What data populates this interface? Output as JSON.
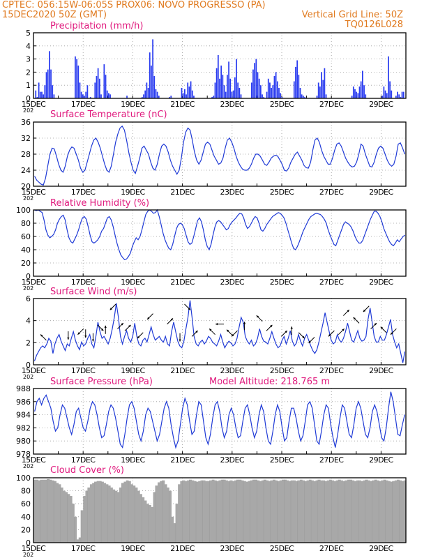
{
  "header": {
    "left_line1": "CPTEC:   056:15W-06:05S   PROX06: NOVO PROGRESSO (PA)",
    "left_line2": "15DEC2020 50Z (GMT)",
    "right_line2": "Vertical Grid Line: 50Z",
    "right_line3": "TQ0126L028"
  },
  "colors": {
    "header": "#e07a1f",
    "title": "#e0197d",
    "line": "#1f3ad6",
    "bar": "#2a3cf0",
    "cloud": "#a8a8a8",
    "grid": "#9a9a9a"
  },
  "x_axis": {
    "labels": [
      "15DEC",
      "17DEC",
      "19DEC",
      "21DEC",
      "23DEC",
      "25DEC",
      "27DEC",
      "29DEC"
    ],
    "year_fragment": "202"
  },
  "chart_data": [
    {
      "id": "precip",
      "type": "bar",
      "title": "Precipitation (mm/h)",
      "ylim": [
        0,
        5
      ],
      "yticks": [
        "0",
        "1",
        "2",
        "3",
        "4",
        "5"
      ],
      "x_range_days": [
        15,
        30
      ],
      "values": [
        0,
        0.6,
        0.1,
        1.2,
        0.5,
        0.5,
        0.3,
        1.0,
        2.0,
        2.2,
        3.6,
        2.2,
        1.0,
        0.3,
        0,
        0,
        0,
        0,
        0,
        0,
        0,
        0,
        0,
        0,
        0,
        0,
        0,
        3.2,
        3.0,
        2.5,
        1.2,
        0.5,
        0.3,
        0.2,
        0.5,
        1.0,
        0,
        0.1,
        0,
        0,
        1.2,
        1.7,
        2.3,
        1.5,
        0.3,
        0,
        2.6,
        1.8,
        0.6,
        0.4,
        0.3,
        0,
        0,
        0,
        0,
        0,
        0,
        0,
        0,
        0,
        0,
        0.2,
        0,
        0,
        0,
        0,
        0,
        0,
        0,
        0,
        0,
        0.1,
        0.3,
        0.6,
        1.2,
        0.8,
        3.5,
        2.5,
        4.5,
        1.7,
        0.7,
        0.5,
        0.2,
        0,
        0,
        0,
        0,
        0,
        0,
        0.1,
        0.2,
        0,
        0,
        0,
        0,
        0,
        0,
        0.8,
        0.4,
        0.7,
        0.3,
        1.2,
        0.9,
        1.3,
        0.6,
        0.2,
        0,
        0,
        0,
        0,
        0,
        0,
        0,
        0,
        0,
        0,
        0,
        0.1,
        0.2,
        1.2,
        2.3,
        3.3,
        1.5,
        2.5,
        1.8,
        1.0,
        0.5,
        1.8,
        2.8,
        1.5,
        0.5,
        0.6,
        1.6,
        3.0,
        1.2,
        0.8,
        0.3,
        0,
        0,
        0,
        0,
        0,
        0,
        1.2,
        2.2,
        2.7,
        3.0,
        2.0,
        1.5,
        1.0,
        0.3,
        0.1,
        0,
        0.5,
        1.5,
        1.2,
        0.8,
        1.0,
        1.7,
        2.0,
        1.3,
        0.8,
        0.4,
        0.1,
        0,
        0,
        0,
        0,
        0,
        0,
        0,
        1.3,
        2.4,
        2.9,
        1.8,
        0.8,
        0.3,
        0.2,
        0.1,
        0,
        0,
        0,
        0,
        0,
        0,
        0,
        0.2,
        1.2,
        0.9,
        2.0,
        1.4,
        2.3,
        0.3,
        0,
        0,
        0,
        0,
        0,
        0,
        0,
        0,
        0,
        0,
        0,
        0,
        0,
        0,
        0,
        0,
        0.2,
        0.9,
        0.7,
        0.5,
        0.4,
        0.9,
        1.3,
        2.1,
        1.0,
        0.3,
        0,
        0,
        0,
        0,
        0,
        0,
        0,
        0,
        0,
        0,
        0.2,
        0.9,
        0.6,
        0.4,
        3.2,
        1.3,
        0.6,
        0,
        0,
        0.2,
        0.5,
        0.3,
        0.1,
        0.5,
        0.5,
        0
      ]
    },
    {
      "id": "temp",
      "type": "line",
      "title": "Surface Temperature (nC)",
      "ylim": [
        20,
        36
      ],
      "yticks": [
        "20",
        "24",
        "28",
        "32",
        "36"
      ],
      "x_range_days": [
        15,
        30
      ],
      "values": [
        22.5,
        21.5,
        21.0,
        20.5,
        20.3,
        22,
        25,
        28,
        29.5,
        29.3,
        27.5,
        25.5,
        24,
        23.5,
        25,
        27.5,
        29,
        29.8,
        29.5,
        28,
        26.5,
        24.5,
        23.5,
        24,
        26,
        28,
        30,
        31.5,
        32,
        31,
        29.5,
        27.5,
        25.5,
        24,
        23.5,
        25,
        28,
        31,
        33,
        34.5,
        35,
        34,
        31.5,
        28.5,
        26,
        24,
        23.2,
        25,
        27,
        29.5,
        30,
        29,
        28,
        26,
        24.5,
        24,
        25.5,
        28,
        30,
        30.5,
        30,
        28.5,
        26.5,
        25,
        24,
        23,
        24,
        27,
        31,
        33.5,
        34.5,
        34,
        31.5,
        28.5,
        26.5,
        25.5,
        26.5,
        28.5,
        30.5,
        31,
        30.5,
        29,
        27.5,
        26.5,
        25.5,
        25.8,
        27,
        29.5,
        31.5,
        32,
        31,
        29.5,
        27.5,
        26,
        25,
        24.2,
        24,
        24,
        24.5,
        25.5,
        27,
        28,
        28,
        27.5,
        26.5,
        25.5,
        25.2,
        26,
        27,
        27.5,
        27.7,
        27.5,
        26.5,
        25.5,
        24,
        23.8,
        24.5,
        26,
        27,
        28,
        28.5,
        27.5,
        26.5,
        25.2,
        24.6,
        24.5,
        26,
        29,
        31.5,
        32,
        31,
        29,
        27.5,
        26.5,
        25.5,
        25.5,
        27,
        29,
        30.5,
        30.8,
        30,
        28.5,
        27,
        26,
        25.2,
        24.8,
        25,
        26,
        28,
        30.5,
        30,
        28,
        26.5,
        25,
        24.8,
        26,
        28,
        29.5,
        30,
        29.5,
        28,
        26.5,
        25.5,
        25,
        25.5,
        27.5,
        30.5,
        30.8,
        29.5,
        28
      ]
    },
    {
      "id": "rh",
      "type": "line",
      "title": "Relative Humidity (%)",
      "ylim": [
        0,
        100
      ],
      "yticks": [
        "0",
        "20",
        "40",
        "60",
        "80",
        "100"
      ],
      "x_range_days": [
        15,
        30
      ],
      "values": [
        100,
        99,
        100,
        98,
        96,
        85,
        70,
        62,
        58,
        60,
        63,
        70,
        80,
        86,
        90,
        92,
        85,
        70,
        58,
        52,
        50,
        56,
        62,
        70,
        80,
        88,
        90,
        86,
        75,
        62,
        52,
        50,
        52,
        55,
        60,
        68,
        72,
        80,
        88,
        90,
        85,
        75,
        62,
        50,
        40,
        32,
        28,
        25,
        26,
        30,
        35,
        45,
        52,
        58,
        55,
        60,
        70,
        82,
        93,
        98,
        100,
        98,
        95,
        96,
        100,
        90,
        78,
        65,
        55,
        48,
        42,
        40,
        48,
        60,
        72,
        78,
        80,
        78,
        72,
        62,
        52,
        48,
        50,
        60,
        72,
        84,
        88,
        82,
        70,
        55,
        45,
        40,
        48,
        62,
        74,
        82,
        84,
        82,
        78,
        74,
        70,
        72,
        78,
        82,
        85,
        88,
        92,
        95,
        94,
        88,
        78,
        72,
        75,
        80,
        86,
        90,
        88,
        80,
        70,
        68,
        72,
        78,
        82,
        86,
        90,
        92,
        94,
        96,
        95,
        92,
        88,
        80,
        70,
        60,
        50,
        42,
        40,
        45,
        52,
        60,
        68,
        74,
        80,
        86,
        90,
        92,
        94,
        95,
        94,
        93,
        90,
        86,
        80,
        70,
        62,
        55,
        48,
        46,
        54,
        62,
        70,
        78,
        82,
        80,
        78,
        74,
        68,
        60,
        54,
        50,
        50,
        54,
        62,
        70,
        78,
        86,
        92,
        98,
        98,
        95,
        90,
        82,
        72,
        65,
        58,
        52,
        48,
        46,
        50,
        55,
        52,
        56,
        60,
        62
      ]
    },
    {
      "id": "wind",
      "type": "line",
      "title": "Surface Wind (m/s)",
      "ylim": [
        0,
        7
      ],
      "yticks": [
        "0",
        "2",
        "4",
        "6"
      ],
      "x_range_days": [
        15,
        30
      ],
      "values": [
        0.4,
        1.0,
        1.4,
        1.8,
        2.0,
        1.8,
        2.2,
        2.8,
        2.5,
        1.2,
        2.2,
        2.8,
        3.2,
        2.5,
        2.0,
        1.5,
        2.2,
        2.0,
        2.8,
        3.5,
        2.6,
        2.0,
        1.6,
        2.4,
        2.0,
        2.2,
        2.8,
        3.2,
        2.2,
        1.8,
        3.0,
        4.5,
        3.5,
        2.8,
        3.0,
        2.6,
        2.2,
        2.8,
        3.8,
        5.0,
        6.5,
        5.0,
        3.0,
        2.2,
        3.0,
        3.6,
        2.8,
        2.4,
        3.0,
        4.4,
        3.0,
        2.2,
        2.0,
        2.6,
        2.8,
        2.4,
        3.2,
        4.0,
        3.2,
        2.6,
        2.8,
        3.0,
        2.6,
        2.4,
        3.0,
        2.2,
        2.0,
        3.5,
        4.5,
        3.5,
        2.5,
        2.0,
        1.8,
        2.5,
        3.8,
        5.0,
        6.8,
        5.0,
        3.0,
        2.2,
        2.0,
        2.4,
        2.6,
        2.2,
        2.5,
        3.0,
        2.8,
        2.4,
        2.2,
        2.0,
        2.5,
        3.2,
        2.4,
        1.8,
        2.2,
        2.5,
        2.3,
        2.0,
        2.2,
        2.8,
        4.0,
        5.0,
        4.5,
        3.0,
        2.5,
        2.2,
        2.6,
        2.0,
        2.2,
        2.8,
        3.8,
        3.0,
        2.5,
        2.4,
        2.2,
        2.8,
        3.5,
        2.8,
        2.2,
        1.8,
        2.0,
        2.6,
        3.0,
        2.2,
        2.8,
        3.6,
        2.5,
        2.0,
        2.3,
        3.2,
        2.5,
        2.0,
        2.8,
        3.2,
        2.6,
        2.0,
        1.5,
        1.2,
        1.6,
        2.4,
        3.4,
        4.4,
        5.5,
        4.5,
        3.5,
        2.6,
        2.2,
        2.4,
        3.2,
        2.6,
        2.4,
        2.8,
        3.5,
        4.4,
        3.5,
        2.6,
        2.4,
        3.0,
        3.6,
        2.8,
        2.5,
        2.6,
        3.0,
        4.8,
        6.0,
        4.5,
        3.0,
        2.4,
        2.4,
        3.0,
        2.6,
        2.6,
        3.2,
        4.0,
        4.8,
        3.2,
        2.4,
        1.8,
        2.2,
        1.2,
        0.2,
        1.4
      ]
    },
    {
      "id": "pressure",
      "type": "line",
      "title": "Surface Pressure (hPa)",
      "ylim": [
        978,
        988
      ],
      "yticks": [
        "978",
        "980",
        "982",
        "984",
        "986",
        "988"
      ],
      "x_range_days": [
        15,
        30
      ],
      "values": [
        984.5,
        986.0,
        986.5,
        985.5,
        986.5,
        987.0,
        986.0,
        985.0,
        983.0,
        981.5,
        982.0,
        984.0,
        985.5,
        985.0,
        983.5,
        982.0,
        981.0,
        982.5,
        984.5,
        985.0,
        983.5,
        982.0,
        981.5,
        983.0,
        985.0,
        986.0,
        985.5,
        984.0,
        982.0,
        980.5,
        980.8,
        982.5,
        984.5,
        985.5,
        985.0,
        983.5,
        981.5,
        979.5,
        979.0,
        981.0,
        983.5,
        985.5,
        986.0,
        985.0,
        983.0,
        981.0,
        980.0,
        981.5,
        984.0,
        985.0,
        984.5,
        983.0,
        981.5,
        980.0,
        981.0,
        983.0,
        985.0,
        986.0,
        985.0,
        982.5,
        980.5,
        979.0,
        980.0,
        982.5,
        985.0,
        986.5,
        985.5,
        983.0,
        981.0,
        981.5,
        984.0,
        986.0,
        985.5,
        983.0,
        980.5,
        979.5,
        981.0,
        983.5,
        985.5,
        986.0,
        984.5,
        982.0,
        980.5,
        981.5,
        984.0,
        985.0,
        984.0,
        982.0,
        980.5,
        980.8,
        983.0,
        985.0,
        985.5,
        984.0,
        982.0,
        980.5,
        981.5,
        984.0,
        985.5,
        984.5,
        982.0,
        980.0,
        979.5,
        981.5,
        984.0,
        985.5,
        984.5,
        982.0,
        980.0,
        980.5,
        983.0,
        985.0,
        985.0,
        983.5,
        981.5,
        980.0,
        980.8,
        983.0,
        985.5,
        986.0,
        985.0,
        982.5,
        980.0,
        979.5,
        981.5,
        984.0,
        985.5,
        985.0,
        982.5,
        980.5,
        979.0,
        981.0,
        983.5,
        985.5,
        985.0,
        983.0,
        981.0,
        980.5,
        982.5,
        985.0,
        986.0,
        985.0,
        983.0,
        981.0,
        980.5,
        982.0,
        984.5,
        985.5,
        984.5,
        982.5,
        980.5,
        980.0,
        982.0,
        985.0,
        987.5,
        986.0,
        983.5,
        981.0,
        980.8,
        982.5,
        984.0
      ]
    },
    {
      "id": "cloud",
      "type": "area",
      "title": "Cloud Cover (%)",
      "ylim": [
        0,
        100
      ],
      "yticks": [
        "0",
        "20",
        "40",
        "60",
        "80",
        "100"
      ],
      "x_range_days": [
        15,
        30
      ],
      "values": [
        97,
        97,
        96,
        97,
        97,
        97,
        98,
        97,
        96,
        95,
        92,
        90,
        85,
        80,
        78,
        75,
        72,
        60,
        40,
        5,
        8,
        50,
        72,
        80,
        85,
        90,
        92,
        94,
        95,
        95,
        94,
        92,
        90,
        88,
        85,
        82,
        80,
        78,
        85,
        92,
        94,
        96,
        95,
        90,
        88,
        85,
        80,
        75,
        70,
        65,
        60,
        58,
        55,
        78,
        88,
        93,
        95,
        96,
        90,
        85,
        80,
        40,
        30,
        60,
        90,
        95,
        96,
        95,
        96,
        97,
        96,
        95,
        94,
        95,
        96,
        96,
        95,
        95,
        96,
        97,
        96,
        95,
        96,
        97,
        97,
        96,
        95,
        96,
        95,
        96,
        97,
        97,
        96,
        95,
        94,
        95,
        96,
        97,
        97,
        96,
        95,
        96,
        97,
        96,
        95,
        96,
        97,
        96,
        95,
        96,
        97,
        97,
        96,
        95,
        96,
        96,
        95,
        96,
        97,
        96,
        95,
        96,
        97,
        96,
        95,
        96,
        97,
        96,
        96,
        95,
        96,
        97,
        96,
        95,
        96,
        97,
        96,
        95,
        96,
        97,
        97,
        96,
        95,
        96,
        96,
        95,
        96,
        97,
        96,
        95,
        96,
        97,
        96,
        95,
        96,
        97,
        96,
        95,
        94,
        95,
        96,
        97,
        96,
        95,
        96
      ]
    }
  ],
  "wind_arrows": [
    {
      "day": 15.4,
      "dir": "NW"
    },
    {
      "day": 16.4,
      "dir": "S"
    },
    {
      "day": 16.9,
      "dir": "SW"
    },
    {
      "day": 17.1,
      "dir": "S"
    },
    {
      "day": 17.4,
      "dir": "S"
    },
    {
      "day": 17.7,
      "dir": "SE"
    },
    {
      "day": 17.9,
      "dir": "N"
    },
    {
      "day": 18.2,
      "dir": "SW"
    },
    {
      "day": 18.5,
      "dir": "NE"
    },
    {
      "day": 18.8,
      "dir": "NE"
    },
    {
      "day": 19.3,
      "dir": "SW"
    },
    {
      "day": 19.7,
      "dir": "SW"
    },
    {
      "day": 20.5,
      "dir": "NE"
    },
    {
      "day": 20.9,
      "dir": "S"
    },
    {
      "day": 21.2,
      "dir": "SE"
    },
    {
      "day": 21.5,
      "dir": "NE"
    },
    {
      "day": 22.2,
      "dir": "NW"
    },
    {
      "day": 22.5,
      "dir": "W"
    },
    {
      "day": 22.9,
      "dir": "NW"
    },
    {
      "day": 23.1,
      "dir": "SW"
    },
    {
      "day": 23.5,
      "dir": "N"
    },
    {
      "day": 24.1,
      "dir": "NW"
    },
    {
      "day": 24.5,
      "dir": "NE"
    },
    {
      "day": 25.1,
      "dir": "NE"
    },
    {
      "day": 25.4,
      "dir": "N"
    },
    {
      "day": 25.8,
      "dir": "SE"
    },
    {
      "day": 26.2,
      "dir": "SW"
    },
    {
      "day": 27.0,
      "dir": "SW"
    },
    {
      "day": 27.4,
      "dir": "NE"
    },
    {
      "day": 27.6,
      "dir": "NE"
    },
    {
      "day": 28.0,
      "dir": "NW"
    },
    {
      "day": 28.4,
      "dir": "SW"
    },
    {
      "day": 28.7,
      "dir": "NE"
    },
    {
      "day": 29.1,
      "dir": "NW"
    },
    {
      "day": 29.5,
      "dir": "SW"
    }
  ],
  "annotations": {
    "model_altitude": "Model Altitude: 218.765  m"
  }
}
